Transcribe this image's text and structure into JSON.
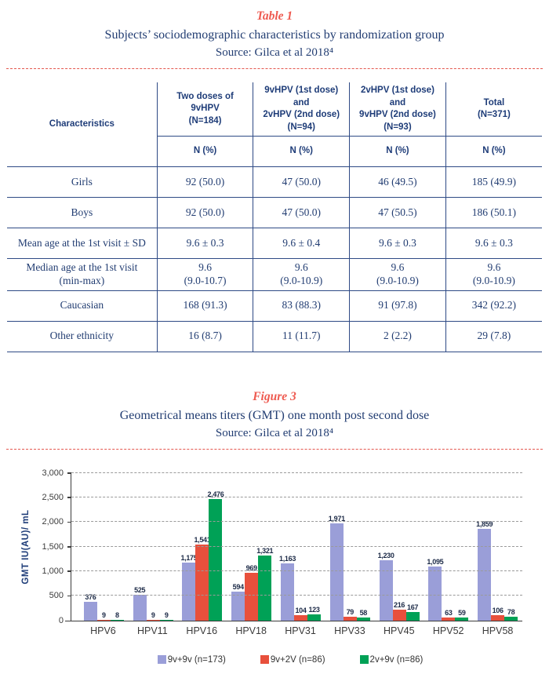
{
  "table_section": {
    "tag": "Table 1",
    "title": "Subjects’ sociodemographic characteristics by randomization group",
    "source": "Source: Gilca et al 2018⁴",
    "table": {
      "col0_header": "Characteristics",
      "group_headers": [
        "Two doses of 9vHPV\n(N=184)",
        "9vHPV (1st dose) and\n2vHPV (2nd dose)\n(N=94)",
        "2vHPV (1st dose) and\n9vHPV (2nd dose)\n(N=93)",
        "Total\n(N=371)"
      ],
      "subheaders": [
        "N (%)",
        "N (%)",
        "N (%)",
        "N (%)"
      ],
      "rows": [
        {
          "label": "Girls",
          "values": [
            "92 (50.0)",
            "47 (50.0)",
            "46 (49.5)",
            "185 (49.9)"
          ]
        },
        {
          "label": "Boys",
          "values": [
            "92 (50.0)",
            "47 (50.0)",
            "47 (50.5)",
            "186 (50.1)"
          ]
        },
        {
          "label": "Mean age at the 1st visit ± SD",
          "values": [
            "9.6 ± 0.3",
            "9.6 ± 0.4",
            "9.6 ± 0.3",
            "9.6 ± 0.3"
          ]
        },
        {
          "label": "Median age at the 1st visit\n(min-max)",
          "values": [
            "9.6\n(9.0-10.7)",
            "9.6\n(9.0-10.9)",
            "9.6\n(9.0-10.9)",
            "9.6\n(9.0-10.9)"
          ]
        },
        {
          "label": "Caucasian",
          "values": [
            "168 (91.3)",
            "83 (88.3)",
            "91 (97.8)",
            "342 (92.2)"
          ]
        },
        {
          "label": "Other ethnicity",
          "values": [
            "16 (8.7)",
            "11 (11.7)",
            "2 (2.2)",
            "29 (7.8)"
          ]
        }
      ]
    }
  },
  "figure_section": {
    "tag": "Figure 3",
    "title": "Geometrical means titers (GMT) one month post second dose",
    "source": "Source: Gilca et al 2018⁴"
  },
  "chart_data": {
    "type": "bar",
    "title": "Geometrical means titers (GMT) one month post second dose",
    "categories": [
      "HPV6",
      "HPV11",
      "HPV16",
      "HPV18",
      "HPV31",
      "HPV33",
      "HPV45",
      "HPV52",
      "HPV58"
    ],
    "series": [
      {
        "name": "9v+9v (n=173)",
        "color": "#9a9ed8",
        "values": [
          376,
          525,
          1175,
          594,
          1163,
          1971,
          1230,
          1095,
          1859
        ]
      },
      {
        "name": "9v+2V (n=86)",
        "color": "#e8503c",
        "values": [
          9,
          9,
          1541,
          969,
          104,
          79,
          216,
          63,
          106
        ]
      },
      {
        "name": "2v+9v (n=86)",
        "color": "#00a156",
        "values": [
          8,
          9,
          2476,
          1321,
          123,
          58,
          167,
          59,
          78
        ]
      }
    ],
    "ylabel": "GMT IU(AU)/ mL",
    "ylim": [
      0,
      3000
    ],
    "ytick_step": 500,
    "ytick_labels": [
      "0",
      "500",
      "1,000",
      "1,500",
      "2,000",
      "2,500",
      "3,000"
    ],
    "grid": "horizontal-dashed",
    "legend_position": "bottom",
    "bar_value_labels": true
  },
  "colors": {
    "accent_red": "#ee5a50",
    "navy_text": "#223d72",
    "table_border": "#2e4a85",
    "axis": "#3c3c3c",
    "gridline": "#9a9a9a"
  }
}
